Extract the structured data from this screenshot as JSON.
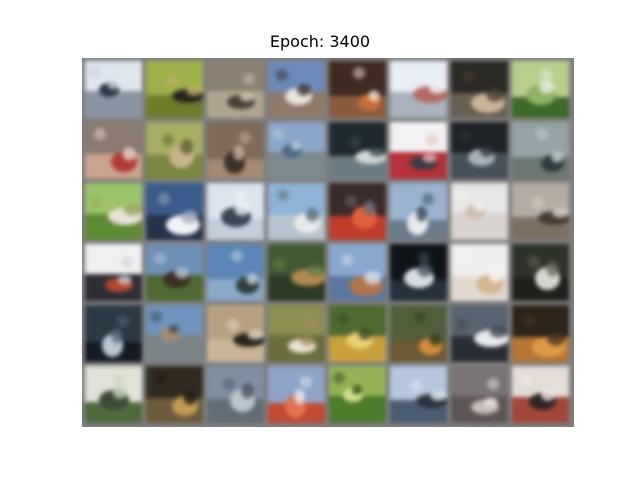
{
  "title": "Epoch: 3400",
  "grid": {
    "rows": 6,
    "cols": 8,
    "cells": [
      {
        "sky": "#dfe6ee",
        "ground": "#8a95a3",
        "blob": "#2b3646",
        "blob2": "#c7d0da"
      },
      {
        "sky": "#9fb04a",
        "ground": "#6f7d2b",
        "blob": "#2a2520",
        "blob2": "#c7b06d"
      },
      {
        "sky": "#8b8173",
        "ground": "#b1a48f",
        "blob": "#4b3f34",
        "blob2": "#d2c7b6"
      },
      {
        "sky": "#6c89b8",
        "ground": "#8e7a6b",
        "blob": "#e9e3dc",
        "blob2": "#3a2f2a"
      },
      {
        "sky": "#3f2b24",
        "ground": "#8a5b3f",
        "blob": "#c56e34",
        "blob2": "#efe3d0"
      },
      {
        "sky": "#e7eef6",
        "ground": "#a9b2be",
        "blob": "#b36a63",
        "blob2": "#f4f6f8"
      },
      {
        "sky": "#2c2a26",
        "ground": "#6a5f52",
        "blob": "#c9b39a",
        "blob2": "#4b4034"
      },
      {
        "sky": "#b8cf8b",
        "ground": "#3e6a2a",
        "blob": "#8eb265",
        "blob2": "#e5eedb"
      },
      {
        "sky": "#8b7b70",
        "ground": "#c9a38e",
        "blob": "#b03b34",
        "blob2": "#e7d8cc"
      },
      {
        "sky": "#a7ad62",
        "ground": "#7b8640",
        "blob": "#c8b488",
        "blob2": "#5d6131"
      },
      {
        "sky": "#7f6b59",
        "ground": "#a38a72",
        "blob": "#3e3127",
        "blob2": "#cbb59d"
      },
      {
        "sky": "#8aa6c8",
        "ground": "#7c8b8f",
        "blob": "#516b85",
        "blob2": "#bfcddc"
      },
      {
        "sky": "#1f2a2f",
        "ground": "#6a7d84",
        "blob": "#cfd8d6",
        "blob2": "#3d4c52"
      },
      {
        "sky": "#f2f2f4",
        "ground": "#b5323a",
        "blob": "#3b3b45",
        "blob2": "#e9b4b0"
      },
      {
        "sky": "#1f2327",
        "ground": "#48505a",
        "blob": "#a8b3bd",
        "blob2": "#2d3339"
      },
      {
        "sky": "#95a3a7",
        "ground": "#6d7773",
        "blob": "#2f3c3f",
        "blob2": "#c8d0d2"
      },
      {
        "sky": "#9bc46a",
        "ground": "#5e8b34",
        "blob": "#e8e2d6",
        "blob2": "#9aa35d"
      },
      {
        "sky": "#3a5b8c",
        "ground": "#23334a",
        "blob": "#f1f3f6",
        "blob2": "#a2adbd"
      },
      {
        "sky": "#dce4ee",
        "ground": "#c2cedc",
        "blob": "#394656",
        "blob2": "#f3f5f8"
      },
      {
        "sky": "#8fb4d7",
        "ground": "#b7c4cf",
        "blob": "#e7ebee",
        "blob2": "#5e6b76"
      },
      {
        "sky": "#3a2b2a",
        "ground": "#c03d2b",
        "blob": "#e25f3a",
        "blob2": "#6c6f7a"
      },
      {
        "sky": "#9ab3cf",
        "ground": "#6b7c8c",
        "blob": "#e7eaee",
        "blob2": "#3a4550"
      },
      {
        "sky": "#e8e6e6",
        "ground": "#d8d3cf",
        "blob": "#cfbdb1",
        "blob2": "#f5f3f2"
      },
      {
        "sky": "#b5aca3",
        "ground": "#7e6f63",
        "blob": "#4a3b31",
        "blob2": "#ddd6cf"
      },
      {
        "sky": "#eef0f2",
        "ground": "#2f2f35",
        "blob": "#b4472f",
        "blob2": "#c9cdd2"
      },
      {
        "sky": "#6e8fb6",
        "ground": "#4e6a33",
        "blob": "#3c2f25",
        "blob2": "#b6c7d9"
      },
      {
        "sky": "#5b86b6",
        "ground": "#8aa9c8",
        "blob": "#2f3f3a",
        "blob2": "#c7d5e1"
      },
      {
        "sky": "#405a36",
        "ground": "#2b3b25",
        "blob": "#b28a4e",
        "blob2": "#6c7f4a"
      },
      {
        "sky": "#8aa8cf",
        "ground": "#5c78a0",
        "blob": "#b3754a",
        "blob2": "#d7e1ec"
      },
      {
        "sky": "#0f1419",
        "ground": "#25313d",
        "blob": "#d7dde2",
        "blob2": "#4c5864"
      },
      {
        "sky": "#f0efee",
        "ground": "#e1d9cf",
        "blob": "#d2b48f",
        "blob2": "#f8f6f3"
      },
      {
        "sky": "#2e332a",
        "ground": "#1e221b",
        "blob": "#d9d6cf",
        "blob2": "#6c6a5f"
      },
      {
        "sky": "#2a3a45",
        "ground": "#141b22",
        "blob": "#b8c8d5",
        "blob2": "#55697a"
      },
      {
        "sky": "#6e93bc",
        "ground": "#7b8488",
        "blob": "#a88b6f",
        "blob2": "#3e4b57"
      },
      {
        "sky": "#b7a082",
        "ground": "#c9b597",
        "blob": "#2b241d",
        "blob2": "#e5dcc9"
      },
      {
        "sky": "#8c8f4f",
        "ground": "#6b6e3b",
        "blob": "#e8dfd0",
        "blob2": "#a88a63"
      },
      {
        "sky": "#4d6b2f",
        "ground": "#c9a13b",
        "blob": "#e8cf72",
        "blob2": "#3a4a22"
      },
      {
        "sky": "#50603b",
        "ground": "#6b5a33",
        "blob": "#d48b3b",
        "blob2": "#2e3a22"
      },
      {
        "sky": "#576471",
        "ground": "#2a2f35",
        "blob": "#e7ebee",
        "blob2": "#3d4650"
      },
      {
        "sky": "#2e2418",
        "ground": "#b67634",
        "blob": "#dc9a45",
        "blob2": "#4a3520"
      },
      {
        "sky": "#dfe3d8",
        "ground": "#4e6b3f",
        "blob": "#3c4a36",
        "blob2": "#c7cfbc"
      },
      {
        "sky": "#312a21",
        "ground": "#6e5a3c",
        "blob": "#c39a55",
        "blob2": "#1d1912"
      },
      {
        "sky": "#7f8fa0",
        "ground": "#636d78",
        "blob": "#bcc5ce",
        "blob2": "#4a545e"
      },
      {
        "sky": "#8ea3c6",
        "ground": "#c14a32",
        "blob": "#e27252",
        "blob2": "#e8ecf2"
      },
      {
        "sky": "#93b257",
        "ground": "#4e7a2c",
        "blob": "#cfe08a",
        "blob2": "#2e4a1d"
      },
      {
        "sky": "#b4c7dc",
        "ground": "#4a5d73",
        "blob": "#2a3340",
        "blob2": "#e4ebf2"
      },
      {
        "sky": "#7b7474",
        "ground": "#5e5656",
        "blob": "#c7bcb7",
        "blob2": "#e9e4e2"
      },
      {
        "sky": "#e4dcd6",
        "ground": "#a3463a",
        "blob": "#2d2725",
        "blob2": "#f2ebe7"
      }
    ]
  }
}
